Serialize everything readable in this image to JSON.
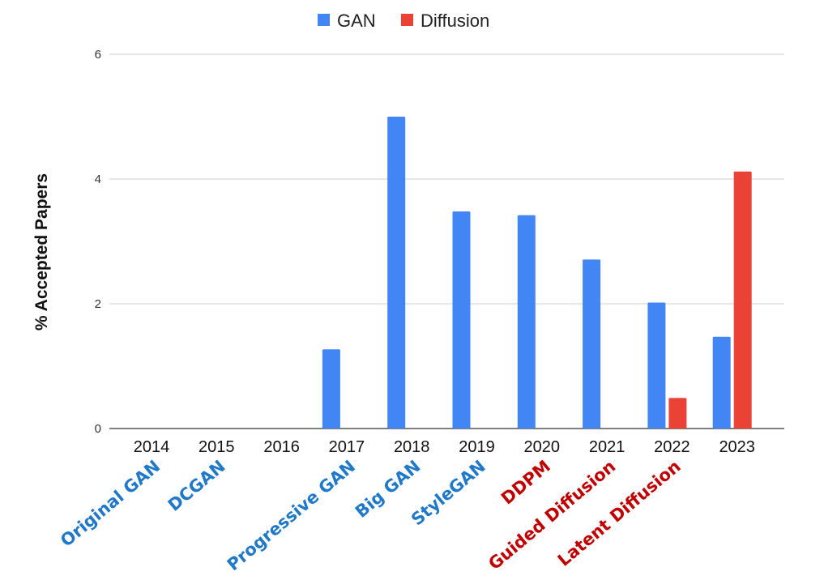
{
  "chart_data": {
    "type": "bar",
    "title": "",
    "xlabel": "",
    "ylabel": "% Accepted Papers",
    "categories": [
      "2014",
      "2015",
      "2016",
      "2017",
      "2018",
      "2019",
      "2020",
      "2021",
      "2022",
      "2023"
    ],
    "series": [
      {
        "name": "GAN",
        "color": "#4285f4",
        "values": [
          0,
          0,
          0,
          1.27,
          5.0,
          3.48,
          3.42,
          2.71,
          2.02,
          1.47
        ]
      },
      {
        "name": "Diffusion",
        "color": "#ea4335",
        "values": [
          0,
          0,
          0,
          0,
          0,
          0,
          0,
          0,
          0.49,
          4.12
        ]
      }
    ],
    "ylim": [
      0,
      6
    ],
    "yticks": [
      0,
      2,
      4,
      6
    ],
    "grid": true,
    "legend_position": "top-center",
    "annotations": [
      {
        "text": "Original GAN",
        "category": "2014",
        "color": "#1f78c8"
      },
      {
        "text": "DCGAN",
        "category": "2015",
        "color": "#1f78c8"
      },
      {
        "text": "Progressive GAN",
        "category": "2017",
        "color": "#1f78c8"
      },
      {
        "text": "Big GAN",
        "category": "2018",
        "color": "#1f78c8"
      },
      {
        "text": "StyleGAN",
        "category": "2019",
        "color": "#1f78c8"
      },
      {
        "text": "DDPM",
        "category": "2020",
        "color": "#c00000"
      },
      {
        "text": "Guided Diffusion",
        "category": "2021",
        "color": "#c00000"
      },
      {
        "text": "Latent Diffusion",
        "category": "2022",
        "color": "#c00000"
      }
    ]
  }
}
